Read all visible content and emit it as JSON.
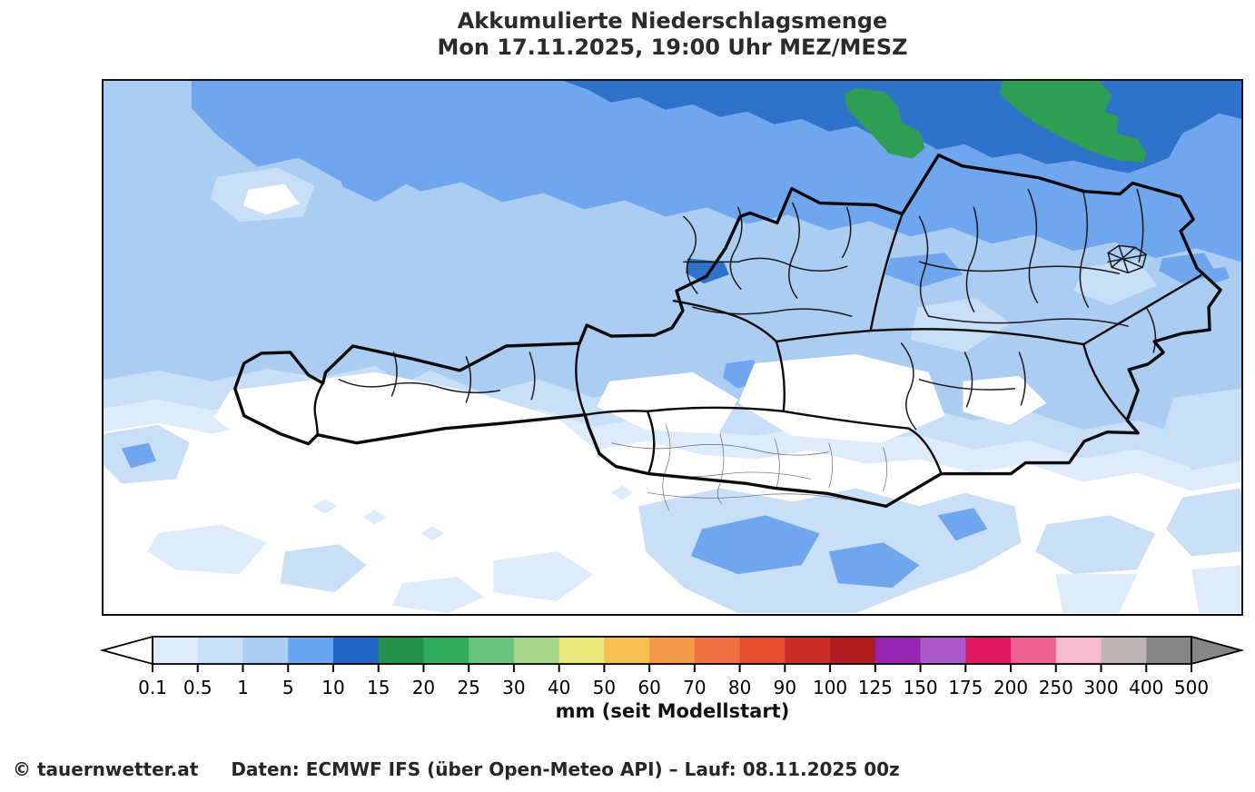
{
  "title": {
    "line1": "Akkumulierte Niederschlagsmenge",
    "line2": "Mon 17.11.2025, 19:00 Uhr MEZ/MESZ"
  },
  "map": {
    "region": "Austria with district boundaries",
    "quantity": "accumulated precipitation",
    "border_color": "#000000",
    "fill_palette": {
      "lt_0_1_mm": "#ffffff",
      "0_1_to_0_5_mm": "#deebfa",
      "0_5_to_1_mm": "#c9def7",
      "1_to_5_mm": "#abcdf2",
      "5_to_10_mm": "#6fa6ee",
      "10_to_15_mm": "#2e73c9",
      "15_to_20_mm": "#2d9e53"
    }
  },
  "colorbar": {
    "unit_label": "mm (seit Modellstart)",
    "tick_labels": [
      "0.1",
      "0.5",
      "1",
      "5",
      "10",
      "15",
      "20",
      "25",
      "30",
      "40",
      "50",
      "60",
      "70",
      "80",
      "90",
      "100",
      "125",
      "150",
      "175",
      "200",
      "250",
      "300",
      "400",
      "500"
    ],
    "segment_colors": [
      "#deebfa",
      "#c9def7",
      "#abcdf2",
      "#6aa3ee",
      "#2265c5",
      "#23914a",
      "#33ab5c",
      "#69c27e",
      "#a6d789",
      "#e9e97b",
      "#f6c053",
      "#f59a49",
      "#ef7044",
      "#e64f2d",
      "#ca2c27",
      "#ae1c1f",
      "#9524b0",
      "#a95ac8",
      "#df1a60",
      "#ec6190",
      "#f6bacf",
      "#bcb4b5",
      "#868686"
    ],
    "under_range_color": "#ffffff",
    "over_range_color": "#868686",
    "outline_color": "#000000"
  },
  "footer": {
    "copyright": "© tauernwetter.at",
    "source": "Daten: ECMWF IFS (über Open-Meteo API) – Lauf: 08.11.2025 00z"
  }
}
